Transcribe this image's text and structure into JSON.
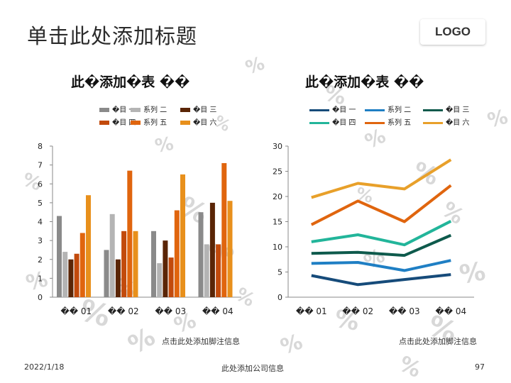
{
  "slide": {
    "title": "单击此处添加标题",
    "logo": "LOGO",
    "date": "2022/1/18",
    "company": "此处添加公司信息",
    "page": "97"
  },
  "chart_data": [
    {
      "type": "bar",
      "title": "此�添加�表 ��",
      "categories": [
        "�� 01",
        "�� 02",
        "�� 03",
        "�� 04"
      ],
      "ylim": [
        0,
        8
      ],
      "yticks": [
        0,
        1,
        2,
        3,
        4,
        5,
        6,
        7,
        8
      ],
      "grid": false,
      "legend_position": "top",
      "series": [
        {
          "name": "�目 一",
          "color": "#8a8a8a",
          "values": [
            4.3,
            2.5,
            3.5,
            4.5
          ]
        },
        {
          "name": "系列 二",
          "color": "#b4b4b4",
          "values": [
            2.4,
            4.4,
            1.8,
            2.8
          ]
        },
        {
          "name": "�目 三",
          "color": "#5a2506",
          "values": [
            2.0,
            2.0,
            3.0,
            5.0
          ]
        },
        {
          "name": "�目 四",
          "color": "#c24a0c",
          "values": [
            2.3,
            3.5,
            2.1,
            2.8
          ]
        },
        {
          "name": "系列 五",
          "color": "#e0650e",
          "values": [
            3.4,
            6.7,
            4.6,
            7.1
          ]
        },
        {
          "name": "�目 六",
          "color": "#e8901c",
          "values": [
            5.4,
            3.5,
            6.5,
            5.1
          ]
        }
      ],
      "note": "点击此处添加脚注信息"
    },
    {
      "type": "line",
      "title": "此�添加�表 ��",
      "categories": [
        "�� 01",
        "�� 02",
        "�� 03",
        "�� 04"
      ],
      "ylim": [
        0,
        30
      ],
      "yticks": [
        0,
        5,
        10,
        15,
        20,
        25,
        30
      ],
      "grid": false,
      "legend_position": "top",
      "series": [
        {
          "name": "�目 一",
          "color": "#164b7a",
          "values": [
            4.3,
            2.5,
            3.5,
            4.5
          ]
        },
        {
          "name": "系列 二",
          "color": "#1f7fc4",
          "values": [
            6.7,
            6.9,
            5.3,
            7.3
          ]
        },
        {
          "name": "�目 三",
          "color": "#0e5a4c",
          "values": [
            8.7,
            8.9,
            8.3,
            12.3
          ]
        },
        {
          "name": "�目 四",
          "color": "#22b59a",
          "values": [
            11.0,
            12.4,
            10.4,
            15.1
          ]
        },
        {
          "name": "系列 五",
          "color": "#e0650e",
          "values": [
            14.4,
            19.1,
            15.0,
            22.2
          ]
        },
        {
          "name": "�目 六",
          "color": "#e8a02a",
          "values": [
            19.8,
            22.6,
            21.5,
            27.3
          ]
        }
      ],
      "note": "点击此处添加脚注信息"
    }
  ]
}
